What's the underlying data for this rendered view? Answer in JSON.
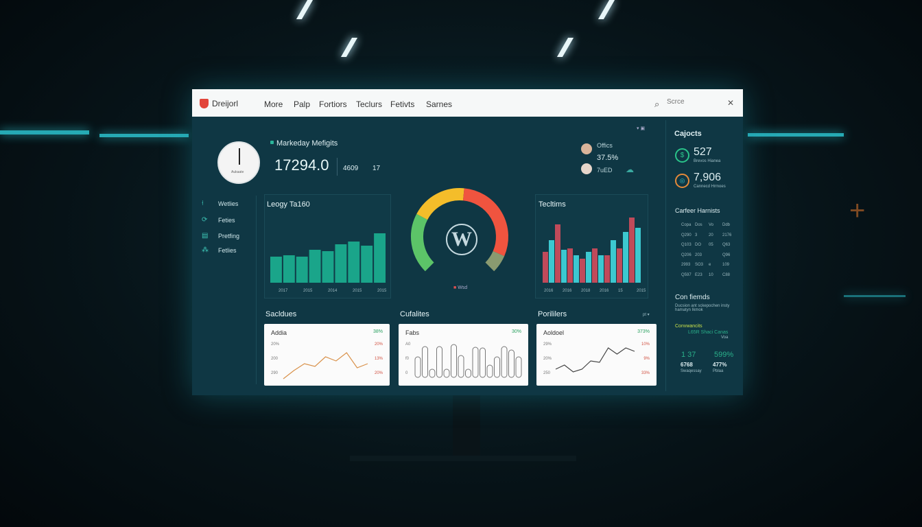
{
  "header": {
    "logo_text": "Dreijorl",
    "nav": [
      "More",
      "Palp",
      "Fortiors",
      "Teclurs",
      "Fetivts",
      "Sarnes"
    ],
    "search_placeholder": "Scrce"
  },
  "kpi": {
    "title": "Markeday Mefigits",
    "value": "17294.0",
    "stat1": "4609",
    "stat2": "17",
    "clock_label": "Aukaate"
  },
  "people": {
    "label": "Offics",
    "percent": "37.5%",
    "value2": "7uED"
  },
  "sidebar": {
    "items": [
      {
        "label": "Wetlies",
        "icon": "pin-icon"
      },
      {
        "label": "Feties",
        "icon": "refresh-icon"
      },
      {
        "label": "Pretfing",
        "icon": "chart-icon"
      },
      {
        "label": "Fetlies",
        "icon": "grid-icon"
      }
    ]
  },
  "bar_panel": {
    "title": "Leogy Ta160",
    "values": [
      38,
      40,
      38,
      48,
      46,
      56,
      60,
      54,
      72
    ],
    "ticks": [
      "2017",
      "2015",
      "2014",
      "2015",
      "2015"
    ],
    "color": "#1aa58a"
  },
  "gauge": {
    "label": "Wsd",
    "segments": [
      {
        "color": "#f4bd2a",
        "value": 25
      },
      {
        "color": "#f0543f",
        "value": 40
      },
      {
        "color": "#8a9a70",
        "value": 8
      },
      {
        "color": "#5cc468",
        "value": 27
      }
    ],
    "icon": "wordpress-icon"
  },
  "dual_bar_panel": {
    "title": "Tecltims",
    "series": [
      {
        "color": "#c04a5a",
        "values": [
          45,
          85,
          50,
          35,
          50,
          40,
          50,
          95
        ]
      },
      {
        "color": "#3cc8d0",
        "values": [
          62,
          48,
          40,
          45,
          40,
          62,
          74,
          80
        ]
      }
    ],
    "ticks": [
      "2016",
      "2016",
      "2018",
      "2016",
      "15",
      "2015"
    ]
  },
  "right": {
    "title": "Cajocts",
    "stat1": {
      "value": "527",
      "label": "Brevos Hianea"
    },
    "stat2": {
      "value": "7,906",
      "label": "Cannecd Hrmoes"
    },
    "table_title": "Carfeer Harnists",
    "table": [
      [
        "Copa",
        "Dos",
        "Vo",
        "Ddb"
      ],
      [
        "Q290",
        "3",
        "20",
        "2176"
      ],
      [
        "Q103",
        "DO",
        "05",
        "Q63"
      ],
      [
        "Q206",
        "203",
        "",
        "Q96"
      ],
      [
        "2993",
        "SO3",
        "e",
        "109"
      ],
      [
        "Q597",
        "E23",
        "10",
        "C88"
      ]
    ],
    "friends_title": "Con fiemds",
    "friends_desc": "Ducsion ant sckepochen insty hamatyn Ikmok",
    "highlight": "Convwancits",
    "highlight2": "L65R Shaci Canas",
    "highlight3": "Voa",
    "m1": "1 37",
    "m2": "599%",
    "m3": "6768",
    "m4": "477%",
    "m3_label": "Swaqessay",
    "m4_label": "Pblaa"
  },
  "bottom": [
    {
      "title": "Sacldues",
      "card_title": "Addia",
      "pct": "38%",
      "yl": [
        "20%",
        "200",
        "290"
      ],
      "yr": [
        "20%",
        "13%",
        "20%"
      ],
      "values": [
        0,
        12,
        22,
        18,
        32,
        26,
        38,
        16,
        22
      ],
      "color": "#d9914a"
    },
    {
      "title": "Cufalites",
      "card_title": "Fabs",
      "pct": "30%",
      "yl": [
        "A0",
        "f0",
        "0"
      ],
      "yr": [],
      "values": [
        30,
        45,
        12,
        45,
        12,
        48,
        32,
        12,
        44,
        43,
        18,
        30,
        45,
        40,
        30
      ],
      "color": "#777"
    },
    {
      "title": "Porililers",
      "card_title": "Aoldoel",
      "pct": "373%",
      "yl": [
        "29%",
        "20%",
        "250"
      ],
      "yr": [
        "10%",
        "9%",
        "33%"
      ],
      "values": [
        14,
        20,
        10,
        14,
        26,
        24,
        45,
        36,
        45,
        40
      ],
      "color": "#444",
      "menu": "pt"
    }
  ]
}
